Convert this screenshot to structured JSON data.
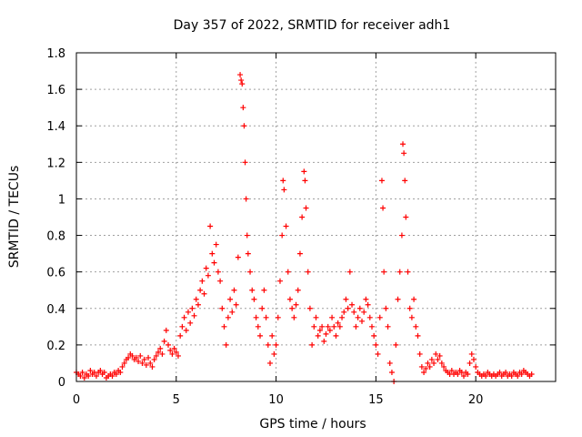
{
  "chart_data": {
    "type": "scatter",
    "title": "Day 357 of 2022, SRMTID for receiver adh1",
    "xlabel": "GPS time / hours",
    "ylabel": "SRMTID / TECUs",
    "xlim": [
      0,
      24
    ],
    "ylim": [
      0,
      1.8
    ],
    "xticks": [
      0,
      5,
      10,
      15,
      20
    ],
    "xtick_labels": [
      "0",
      "5",
      "10",
      "15",
      "20"
    ],
    "yticks": [
      0,
      0.2,
      0.4,
      0.6,
      0.8,
      1.0,
      1.2,
      1.4,
      1.6,
      1.8
    ],
    "ytick_labels": [
      "0",
      "0.2",
      "0.4",
      "0.6",
      "0.8",
      "1",
      "1.2",
      "1.4",
      "1.6",
      "1.8"
    ],
    "grid": true,
    "marker": "+",
    "color": "#ff0000",
    "series": [
      {
        "name": "SRMTID",
        "points": [
          [
            0.0,
            0.05
          ],
          [
            0.1,
            0.04
          ],
          [
            0.2,
            0.03
          ],
          [
            0.3,
            0.05
          ],
          [
            0.4,
            0.02
          ],
          [
            0.5,
            0.04
          ],
          [
            0.6,
            0.03
          ],
          [
            0.7,
            0.06
          ],
          [
            0.8,
            0.04
          ],
          [
            0.9,
            0.05
          ],
          [
            1.0,
            0.03
          ],
          [
            1.1,
            0.05
          ],
          [
            1.2,
            0.06
          ],
          [
            1.3,
            0.04
          ],
          [
            1.4,
            0.05
          ],
          [
            1.5,
            0.02
          ],
          [
            1.6,
            0.03
          ],
          [
            1.7,
            0.04
          ],
          [
            1.8,
            0.03
          ],
          [
            1.9,
            0.05
          ],
          [
            2.0,
            0.04
          ],
          [
            2.1,
            0.06
          ],
          [
            2.2,
            0.05
          ],
          [
            2.3,
            0.08
          ],
          [
            2.4,
            0.1
          ],
          [
            2.5,
            0.12
          ],
          [
            2.6,
            0.13
          ],
          [
            2.7,
            0.15
          ],
          [
            2.8,
            0.14
          ],
          [
            2.9,
            0.12
          ],
          [
            3.0,
            0.13
          ],
          [
            3.1,
            0.11
          ],
          [
            3.2,
            0.14
          ],
          [
            3.3,
            0.1
          ],
          [
            3.4,
            0.12
          ],
          [
            3.5,
            0.09
          ],
          [
            3.6,
            0.13
          ],
          [
            3.7,
            0.1
          ],
          [
            3.8,
            0.08
          ],
          [
            3.9,
            0.12
          ],
          [
            4.0,
            0.14
          ],
          [
            4.1,
            0.16
          ],
          [
            4.2,
            0.18
          ],
          [
            4.3,
            0.15
          ],
          [
            4.4,
            0.22
          ],
          [
            4.5,
            0.28
          ],
          [
            4.6,
            0.2
          ],
          [
            4.7,
            0.17
          ],
          [
            4.8,
            0.15
          ],
          [
            4.9,
            0.18
          ],
          [
            5.0,
            0.16
          ],
          [
            5.1,
            0.14
          ],
          [
            5.2,
            0.25
          ],
          [
            5.3,
            0.3
          ],
          [
            5.4,
            0.35
          ],
          [
            5.5,
            0.28
          ],
          [
            5.6,
            0.38
          ],
          [
            5.7,
            0.32
          ],
          [
            5.8,
            0.4
          ],
          [
            5.9,
            0.36
          ],
          [
            6.0,
            0.45
          ],
          [
            6.1,
            0.42
          ],
          [
            6.2,
            0.5
          ],
          [
            6.3,
            0.55
          ],
          [
            6.4,
            0.48
          ],
          [
            6.5,
            0.62
          ],
          [
            6.6,
            0.58
          ],
          [
            6.7,
            0.85
          ],
          [
            6.8,
            0.7
          ],
          [
            6.9,
            0.65
          ],
          [
            7.0,
            0.75
          ],
          [
            7.1,
            0.6
          ],
          [
            7.2,
            0.55
          ],
          [
            7.3,
            0.4
          ],
          [
            7.4,
            0.3
          ],
          [
            7.5,
            0.2
          ],
          [
            7.6,
            0.35
          ],
          [
            7.7,
            0.45
          ],
          [
            7.8,
            0.38
          ],
          [
            7.9,
            0.5
          ],
          [
            8.0,
            0.42
          ],
          [
            8.1,
            0.68
          ],
          [
            8.2,
            1.68
          ],
          [
            8.25,
            1.65
          ],
          [
            8.3,
            1.63
          ],
          [
            8.35,
            1.5
          ],
          [
            8.4,
            1.4
          ],
          [
            8.45,
            1.2
          ],
          [
            8.5,
            1.0
          ],
          [
            8.55,
            0.8
          ],
          [
            8.6,
            0.7
          ],
          [
            8.7,
            0.6
          ],
          [
            8.8,
            0.5
          ],
          [
            8.9,
            0.45
          ],
          [
            9.0,
            0.35
          ],
          [
            9.1,
            0.3
          ],
          [
            9.2,
            0.25
          ],
          [
            9.3,
            0.4
          ],
          [
            9.4,
            0.5
          ],
          [
            9.5,
            0.35
          ],
          [
            9.6,
            0.2
          ],
          [
            9.7,
            0.1
          ],
          [
            9.8,
            0.25
          ],
          [
            9.9,
            0.15
          ],
          [
            10.0,
            0.2
          ],
          [
            10.1,
            0.35
          ],
          [
            10.2,
            0.55
          ],
          [
            10.3,
            0.8
          ],
          [
            10.35,
            1.1
          ],
          [
            10.4,
            1.05
          ],
          [
            10.5,
            0.85
          ],
          [
            10.6,
            0.6
          ],
          [
            10.7,
            0.45
          ],
          [
            10.8,
            0.4
          ],
          [
            10.9,
            0.35
          ],
          [
            11.0,
            0.42
          ],
          [
            11.1,
            0.5
          ],
          [
            11.2,
            0.7
          ],
          [
            11.3,
            0.9
          ],
          [
            11.4,
            1.15
          ],
          [
            11.45,
            1.1
          ],
          [
            11.5,
            0.95
          ],
          [
            11.6,
            0.6
          ],
          [
            11.7,
            0.4
          ],
          [
            11.8,
            0.2
          ],
          [
            11.9,
            0.3
          ],
          [
            12.0,
            0.35
          ],
          [
            12.1,
            0.25
          ],
          [
            12.2,
            0.28
          ],
          [
            12.3,
            0.3
          ],
          [
            12.4,
            0.22
          ],
          [
            12.5,
            0.26
          ],
          [
            12.6,
            0.3
          ],
          [
            12.7,
            0.28
          ],
          [
            12.8,
            0.35
          ],
          [
            12.9,
            0.3
          ],
          [
            13.0,
            0.25
          ],
          [
            13.1,
            0.32
          ],
          [
            13.2,
            0.3
          ],
          [
            13.3,
            0.35
          ],
          [
            13.4,
            0.38
          ],
          [
            13.5,
            0.45
          ],
          [
            13.6,
            0.4
          ],
          [
            13.7,
            0.6
          ],
          [
            13.8,
            0.42
          ],
          [
            13.9,
            0.38
          ],
          [
            14.0,
            0.3
          ],
          [
            14.1,
            0.35
          ],
          [
            14.2,
            0.4
          ],
          [
            14.3,
            0.33
          ],
          [
            14.4,
            0.38
          ],
          [
            14.5,
            0.45
          ],
          [
            14.6,
            0.42
          ],
          [
            14.7,
            0.35
          ],
          [
            14.8,
            0.3
          ],
          [
            14.9,
            0.25
          ],
          [
            15.0,
            0.2
          ],
          [
            15.1,
            0.15
          ],
          [
            15.2,
            0.35
          ],
          [
            15.3,
            1.1
          ],
          [
            15.35,
            0.95
          ],
          [
            15.4,
            0.6
          ],
          [
            15.5,
            0.4
          ],
          [
            15.6,
            0.3
          ],
          [
            15.7,
            0.1
          ],
          [
            15.8,
            0.05
          ],
          [
            15.9,
            0.0
          ],
          [
            16.0,
            0.2
          ],
          [
            16.1,
            0.45
          ],
          [
            16.2,
            0.6
          ],
          [
            16.3,
            0.8
          ],
          [
            16.35,
            1.3
          ],
          [
            16.4,
            1.25
          ],
          [
            16.45,
            1.1
          ],
          [
            16.5,
            0.9
          ],
          [
            16.6,
            0.6
          ],
          [
            16.7,
            0.4
          ],
          [
            16.8,
            0.35
          ],
          [
            16.9,
            0.45
          ],
          [
            17.0,
            0.3
          ],
          [
            17.1,
            0.25
          ],
          [
            17.2,
            0.15
          ],
          [
            17.3,
            0.08
          ],
          [
            17.4,
            0.05
          ],
          [
            17.5,
            0.07
          ],
          [
            17.6,
            0.1
          ],
          [
            17.7,
            0.08
          ],
          [
            17.8,
            0.12
          ],
          [
            17.9,
            0.1
          ],
          [
            18.0,
            0.15
          ],
          [
            18.1,
            0.12
          ],
          [
            18.2,
            0.14
          ],
          [
            18.3,
            0.1
          ],
          [
            18.4,
            0.08
          ],
          [
            18.5,
            0.06
          ],
          [
            18.6,
            0.05
          ],
          [
            18.7,
            0.04
          ],
          [
            18.8,
            0.06
          ],
          [
            18.9,
            0.04
          ],
          [
            19.0,
            0.05
          ],
          [
            19.1,
            0.04
          ],
          [
            19.2,
            0.06
          ],
          [
            19.3,
            0.05
          ],
          [
            19.4,
            0.03
          ],
          [
            19.5,
            0.05
          ],
          [
            19.6,
            0.04
          ],
          [
            19.7,
            0.1
          ],
          [
            19.8,
            0.15
          ],
          [
            19.9,
            0.12
          ],
          [
            20.0,
            0.08
          ],
          [
            20.1,
            0.05
          ],
          [
            20.2,
            0.04
          ],
          [
            20.3,
            0.03
          ],
          [
            20.4,
            0.04
          ],
          [
            20.5,
            0.03
          ],
          [
            20.6,
            0.05
          ],
          [
            20.7,
            0.04
          ],
          [
            20.8,
            0.03
          ],
          [
            20.9,
            0.04
          ],
          [
            21.0,
            0.03
          ],
          [
            21.1,
            0.04
          ],
          [
            21.2,
            0.05
          ],
          [
            21.3,
            0.03
          ],
          [
            21.4,
            0.04
          ],
          [
            21.5,
            0.05
          ],
          [
            21.6,
            0.03
          ],
          [
            21.7,
            0.04
          ],
          [
            21.8,
            0.03
          ],
          [
            21.9,
            0.05
          ],
          [
            22.0,
            0.04
          ],
          [
            22.1,
            0.03
          ],
          [
            22.2,
            0.05
          ],
          [
            22.3,
            0.04
          ],
          [
            22.4,
            0.06
          ],
          [
            22.5,
            0.05
          ],
          [
            22.6,
            0.04
          ],
          [
            22.7,
            0.03
          ],
          [
            22.8,
            0.04
          ]
        ]
      }
    ]
  }
}
